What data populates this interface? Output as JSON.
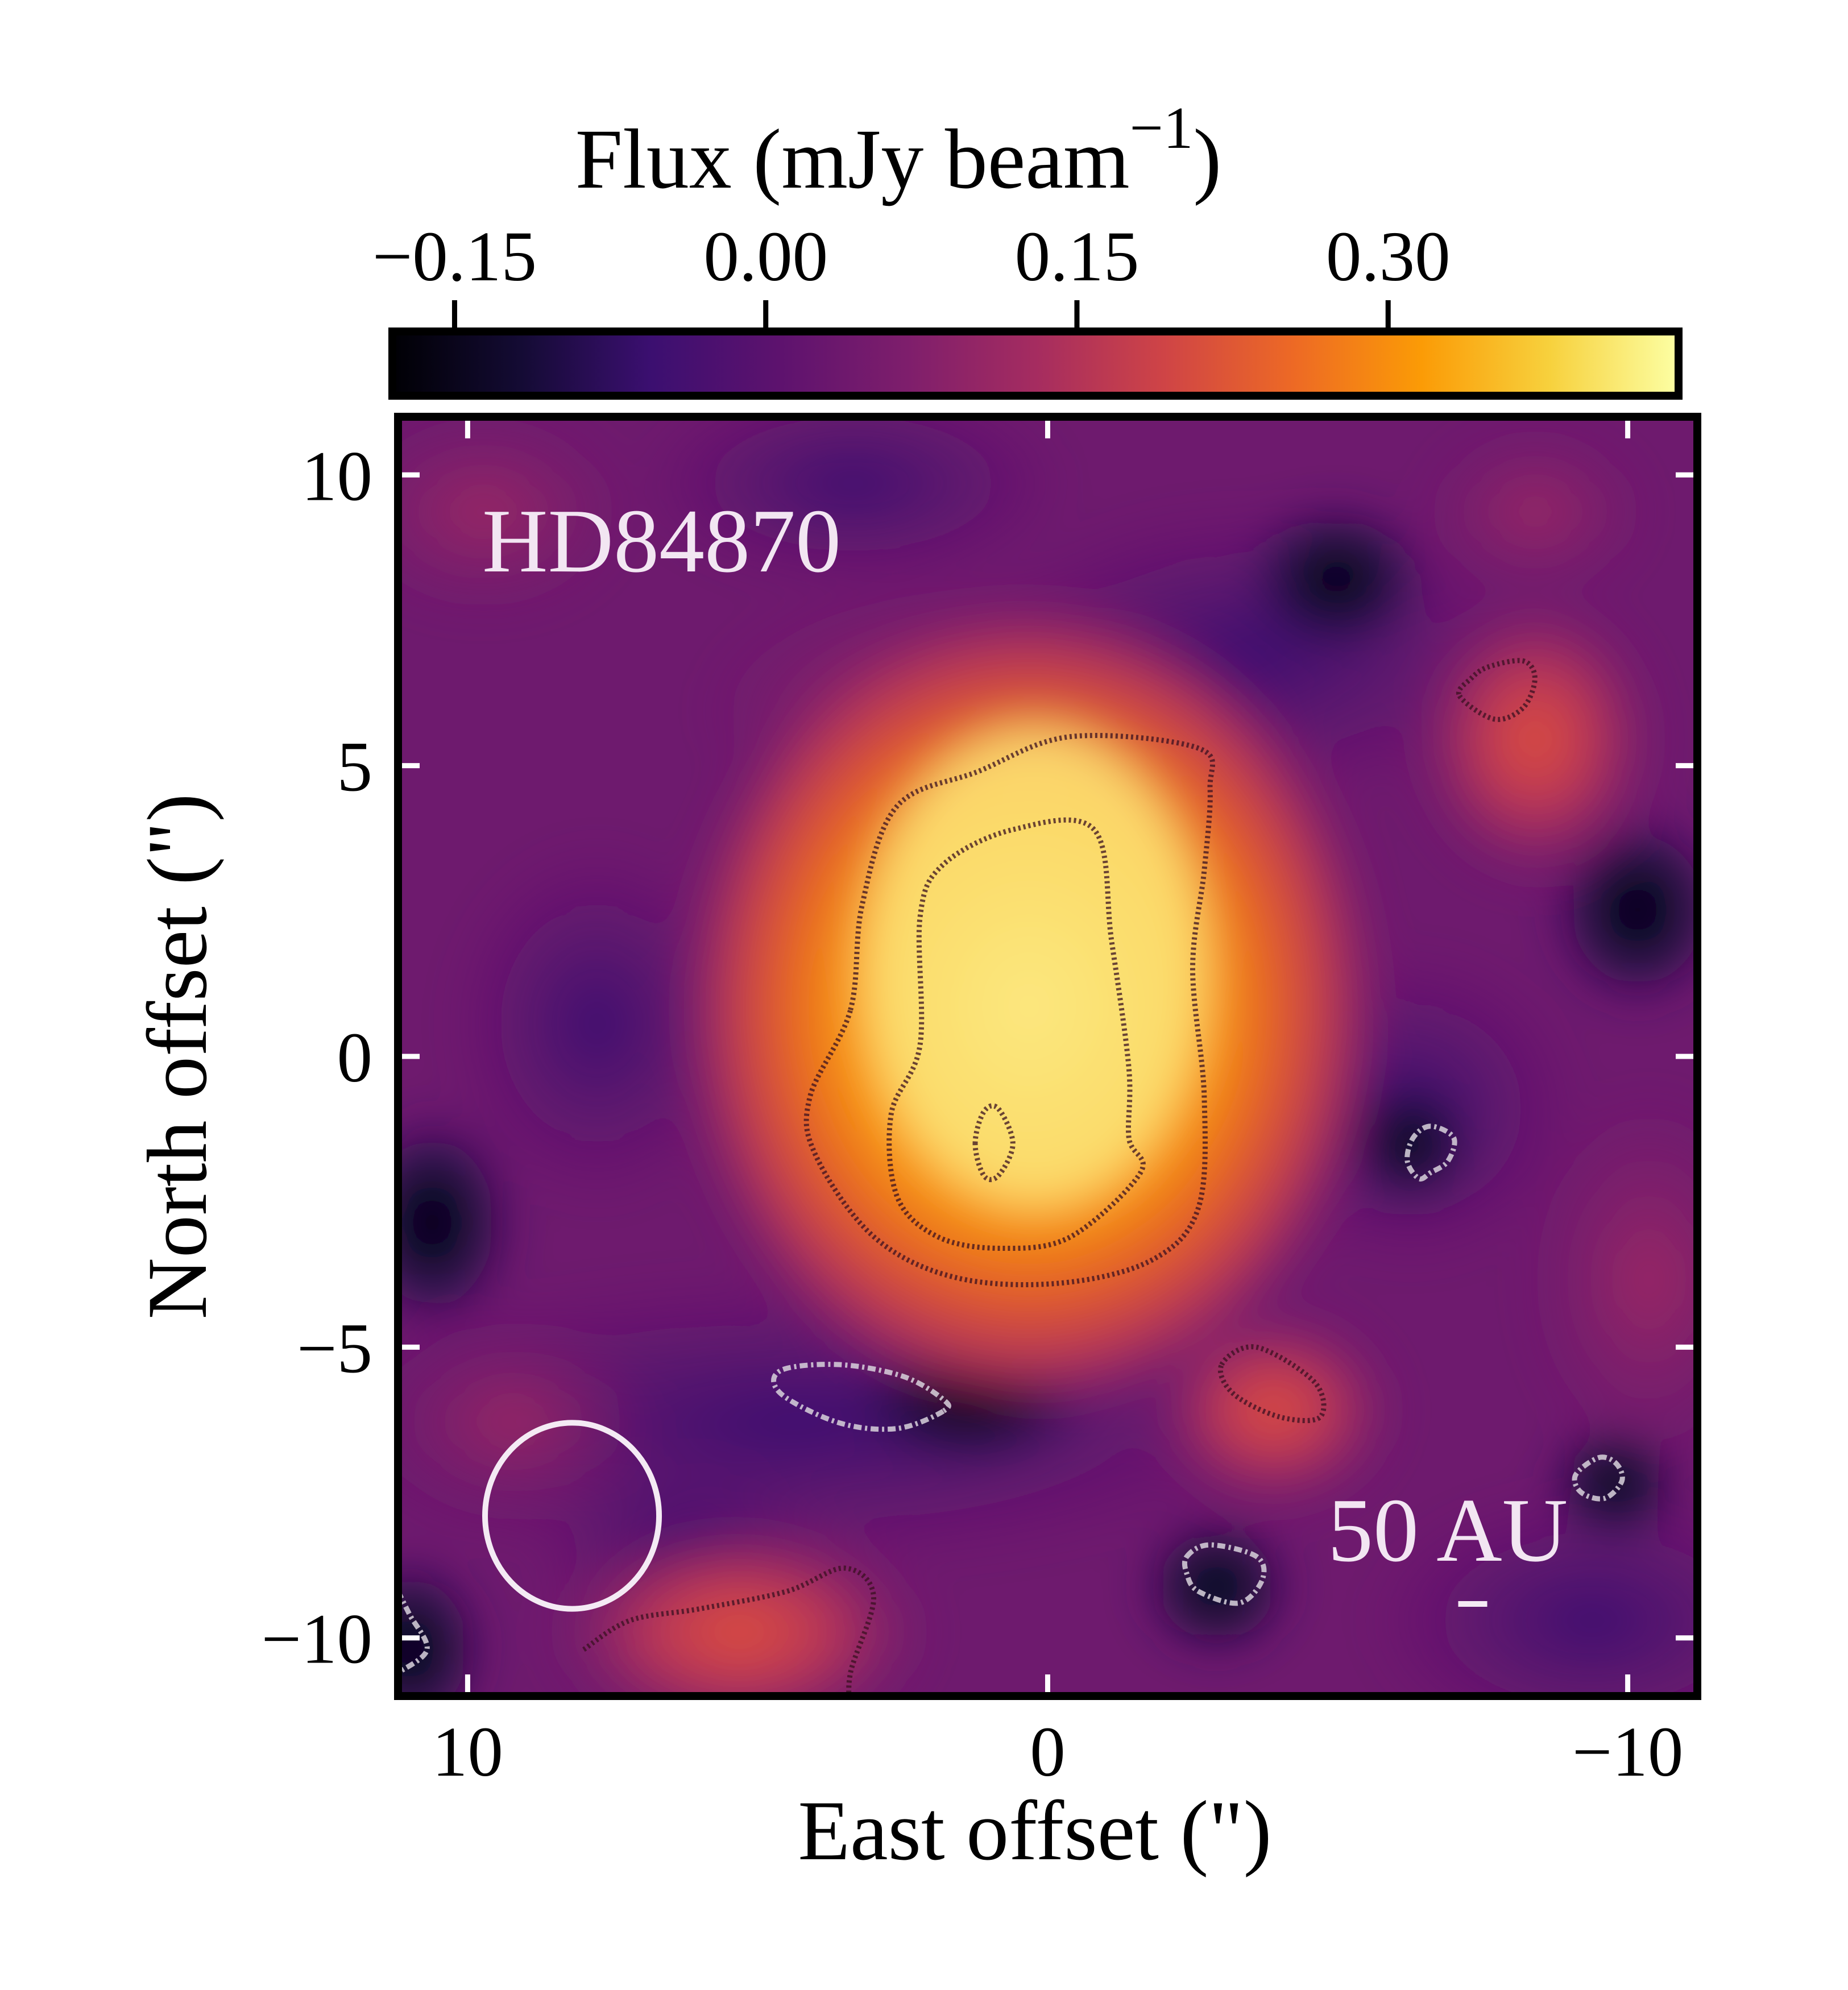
{
  "chart_data": {
    "type": "heatmap",
    "target": "HD84870",
    "colormap": "inferno",
    "colorbar": {
      "label": "Flux (mJy beam",
      "label_exponent": "−1",
      "label_close": ")",
      "ticks": [
        -0.15,
        0.0,
        0.15,
        0.3
      ],
      "tick_labels": [
        "−0.15",
        "0.00",
        "0.15",
        "0.30"
      ],
      "range": [
        -0.18,
        0.44
      ],
      "position": "top"
    },
    "xlabel": "East offset (\")",
    "ylabel": "North offset (\")",
    "xlim": [
      11.2,
      -11.2
    ],
    "ylim": [
      -11.0,
      11.0
    ],
    "xticks": [
      10,
      0,
      -10
    ],
    "xtick_labels": [
      "10",
      "0",
      "−10"
    ],
    "yticks": [
      10,
      5,
      0,
      -5,
      -10
    ],
    "ytick_labels": [
      "10",
      "5",
      "0",
      "−5",
      "−10"
    ],
    "scale_bar_label": "50 AU",
    "scale_bar_length_arcsec": 0.5,
    "beam": {
      "center": [
        8.2,
        -7.9
      ],
      "semi_major": 1.6,
      "semi_minor": 1.5
    },
    "positive_contours": [
      {
        "name": "outer-emission-contour",
        "points": [
          [
            3.4,
            0.8
          ],
          [
            3.2,
            2.6
          ],
          [
            2.6,
            4.3
          ],
          [
            1.2,
            4.9
          ],
          [
            -0.4,
            5.5
          ],
          [
            -2.6,
            5.3
          ],
          [
            -2.8,
            4.6
          ],
          [
            -2.7,
            3.2
          ],
          [
            -2.5,
            1.5
          ],
          [
            -2.7,
            -0.7
          ],
          [
            -2.6,
            -2.6
          ],
          [
            -1.8,
            -3.5
          ],
          [
            -0.2,
            -3.9
          ],
          [
            1.6,
            -3.8
          ],
          [
            3.0,
            -3.1
          ],
          [
            4.0,
            -1.7
          ],
          [
            4.1,
            -0.7
          ]
        ]
      },
      {
        "name": "inner-emission-contour",
        "points": [
          [
            2.2,
            0.2
          ],
          [
            2.2,
            2.4
          ],
          [
            1.8,
            3.3
          ],
          [
            0.6,
            3.9
          ],
          [
            -0.8,
            3.9
          ],
          [
            -1.1,
            2.0
          ],
          [
            -1.4,
            -0.2
          ],
          [
            -1.4,
            -1.4
          ],
          [
            -1.6,
            -2.0
          ],
          [
            -0.4,
            -3.1
          ],
          [
            0.8,
            -3.3
          ],
          [
            1.9,
            -3.1
          ],
          [
            2.6,
            -2.4
          ],
          [
            2.7,
            -1.0
          ]
        ]
      },
      {
        "name": "peak-contour",
        "points": [
          [
            1.25,
            -1.5
          ],
          [
            1.1,
            -0.95
          ],
          [
            0.85,
            -0.9
          ],
          [
            0.6,
            -1.5
          ],
          [
            0.85,
            -2.05
          ],
          [
            1.1,
            -2.05
          ]
        ]
      },
      {
        "name": "north-east-blob-contour",
        "points": [
          [
            -7.1,
            6.2
          ],
          [
            -7.7,
            5.8
          ],
          [
            -8.2,
            6.0
          ],
          [
            -8.4,
            6.5
          ],
          [
            -8.2,
            6.8
          ],
          [
            -7.6,
            6.7
          ],
          [
            -7.3,
            6.5
          ]
        ]
      },
      {
        "name": "south-blob-contour",
        "points": [
          [
            -3.0,
            -5.3
          ],
          [
            -3.6,
            -5.0
          ],
          [
            -4.6,
            -5.6
          ],
          [
            -4.7,
            -6.2
          ],
          [
            -4.0,
            -6.2
          ],
          [
            -3.2,
            -5.8
          ]
        ]
      },
      {
        "name": "south-east-arc-contour",
        "points": [
          [
            8.0,
            -10.2
          ],
          [
            7.2,
            -9.7
          ],
          [
            6.0,
            -9.5
          ],
          [
            4.5,
            -9.2
          ],
          [
            3.5,
            -8.8
          ],
          [
            3.0,
            -9.3
          ],
          [
            3.4,
            -10.6
          ],
          [
            3.4,
            -11.3
          ]
        ]
      }
    ],
    "negative_contours": [
      {
        "name": "south-dip-contour",
        "points": [
          [
            1.8,
            -6.1
          ],
          [
            2.6,
            -6.4
          ],
          [
            3.6,
            -6.3
          ],
          [
            4.6,
            -5.8
          ],
          [
            4.6,
            -5.4
          ],
          [
            3.6,
            -5.3
          ],
          [
            2.5,
            -5.5
          ],
          [
            1.8,
            -5.9
          ]
        ]
      },
      {
        "name": "west-dip-contour",
        "points": [
          [
            -6.6,
            -1.2
          ],
          [
            -6.3,
            -1.4
          ],
          [
            -6.2,
            -1.8
          ],
          [
            -6.4,
            -2.1
          ],
          [
            -6.6,
            -2.0
          ],
          [
            -6.9,
            -1.8
          ],
          [
            -7.0,
            -1.4
          ]
        ]
      },
      {
        "name": "south-west-dip-contour",
        "points": [
          [
            -2.4,
            -8.6
          ],
          [
            -2.8,
            -8.4
          ],
          [
            -3.6,
            -8.6
          ],
          [
            -3.7,
            -9.0
          ],
          [
            -3.3,
            -9.4
          ],
          [
            -2.6,
            -9.2
          ],
          [
            -2.4,
            -8.9
          ]
        ]
      },
      {
        "name": "far-west-dip-contour",
        "points": [
          [
            -9.5,
            -6.9
          ],
          [
            -9.8,
            -7.0
          ],
          [
            -9.9,
            -7.3
          ],
          [
            -9.6,
            -7.6
          ],
          [
            -9.2,
            -7.5
          ],
          [
            -9.1,
            -7.2
          ]
        ]
      },
      {
        "name": "corner-dip-contour",
        "points": [
          [
            11.2,
            -9.2
          ],
          [
            11.0,
            -9.6
          ],
          [
            10.7,
            -10.2
          ],
          [
            11.2,
            -10.6
          ]
        ]
      }
    ]
  }
}
